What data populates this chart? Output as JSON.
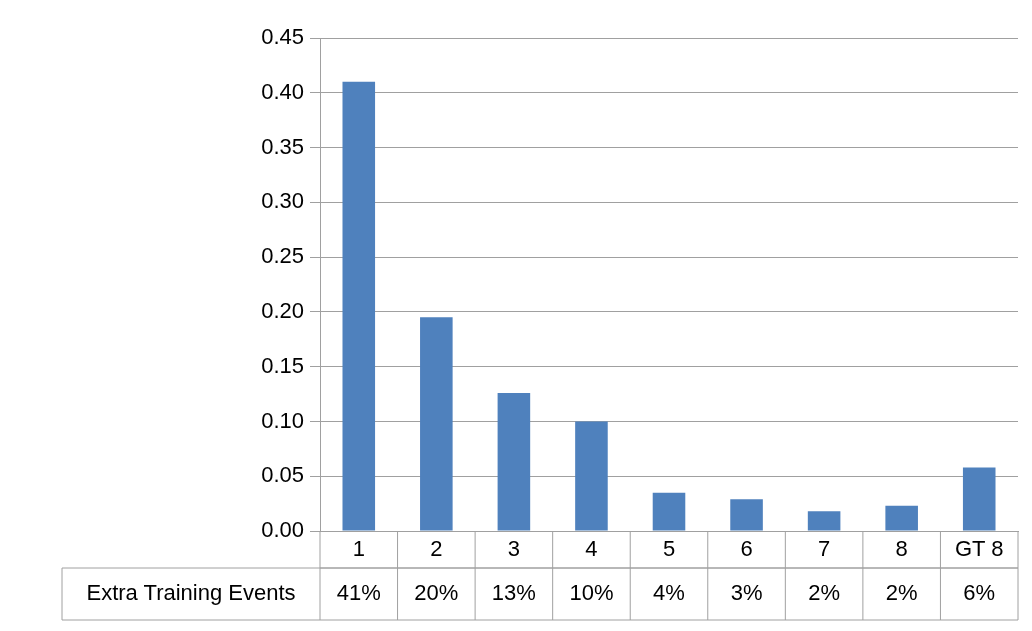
{
  "chart_data": {
    "type": "bar",
    "categories": [
      "1",
      "2",
      "3",
      "4",
      "5",
      "6",
      "7",
      "8",
      "GT 8"
    ],
    "series": [
      {
        "name": "Extra Training Events",
        "color": "#4f81bd",
        "values": [
          0.41,
          0.195,
          0.126,
          0.1,
          0.035,
          0.029,
          0.018,
          0.023,
          0.058
        ],
        "value_labels": [
          "41%",
          "20%",
          "13%",
          "10%",
          "4%",
          "3%",
          "2%",
          "2%",
          "6%"
        ]
      }
    ],
    "ylim": [
      0,
      0.45
    ],
    "yticks": [
      {
        "value": 0,
        "label": "0.00"
      },
      {
        "value": 0.05,
        "label": "0.05"
      },
      {
        "value": 0.1,
        "label": "0.10"
      },
      {
        "value": 0.15,
        "label": "0.15"
      },
      {
        "value": 0.2,
        "label": "0.20"
      },
      {
        "value": 0.25,
        "label": "0.25"
      },
      {
        "value": 0.3,
        "label": "0.30"
      },
      {
        "value": 0.35,
        "label": "0.35"
      },
      {
        "value": 0.4,
        "label": "0.40"
      },
      {
        "value": 0.45,
        "label": "0.45"
      }
    ],
    "grid": "y",
    "legend": false
  }
}
